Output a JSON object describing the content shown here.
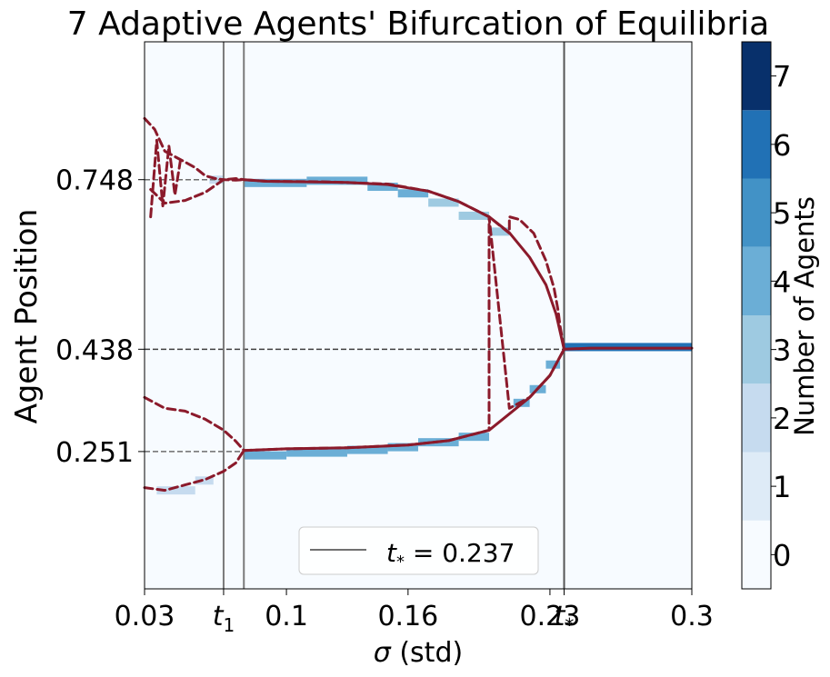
{
  "chart_data": {
    "type": "line",
    "title": "7 Adaptive Agents' Bifurcation of Equilibria",
    "xlabel_symbol": "σ",
    "xlabel_rest": " (std)",
    "ylabel": "Agent Position",
    "xlim": [
      0.03,
      0.3
    ],
    "ylim": [
      0.0,
      1.0
    ],
    "x_ticks": [
      {
        "value": 0.03,
        "label": "0.03"
      },
      {
        "value": 0.069,
        "label": "t",
        "sub": "1"
      },
      {
        "value": 0.1,
        "label": "0.1"
      },
      {
        "value": 0.16,
        "label": "0.16"
      },
      {
        "value": 0.23,
        "label": "0.23"
      },
      {
        "value": 0.237,
        "label": "t",
        "sub": "*"
      },
      {
        "value": 0.3,
        "label": "0.3"
      }
    ],
    "y_ticks": [
      {
        "value": 0.251,
        "label": "0.251"
      },
      {
        "value": 0.438,
        "label": "0.438"
      },
      {
        "value": 0.748,
        "label": "0.748"
      }
    ],
    "reference_hlines": [
      {
        "y": 0.748,
        "x_end": 0.069,
        "style": "dashed",
        "color": "#6e6e6e"
      },
      {
        "y": 0.438,
        "x_end": 0.237,
        "style": "dashed",
        "color": "#404040"
      },
      {
        "y": 0.251,
        "x_end": 0.079,
        "style": "dashed",
        "color": "#6e6e6e"
      }
    ],
    "reference_vlines": [
      {
        "x": 0.069,
        "color": "#7a7a7a"
      },
      {
        "x": 0.079,
        "color": "#7a7a7a"
      },
      {
        "x": 0.237,
        "color": "#555555"
      }
    ],
    "legend": {
      "label": "t",
      "sub": "*",
      "rest": " = 0.237",
      "placement": "lower-center"
    },
    "colorbar": {
      "label": "Number of Agents",
      "ticks": [
        "0",
        "1",
        "2",
        "3",
        "4",
        "5",
        "6",
        "7"
      ],
      "colors": [
        "#f7fbff",
        "#deebf7",
        "#c6dbef",
        "#9ecae1",
        "#6baed6",
        "#4292c6",
        "#2171b5",
        "#08306b"
      ]
    },
    "series": [
      {
        "style": "solid",
        "color": "#8b1a2b",
        "x": [
          0.079,
          0.09,
          0.11,
          0.13,
          0.15,
          0.17,
          0.185,
          0.2,
          0.21,
          0.22,
          0.228,
          0.233,
          0.237,
          0.25,
          0.27,
          0.3
        ],
        "y": [
          0.748,
          0.745,
          0.744,
          0.743,
          0.739,
          0.727,
          0.708,
          0.68,
          0.651,
          0.606,
          0.556,
          0.503,
          0.438,
          0.44,
          0.44,
          0.44
        ]
      },
      {
        "style": "solid",
        "color": "#8b1a2b",
        "x": [
          0.079,
          0.1,
          0.13,
          0.16,
          0.18,
          0.2,
          0.21,
          0.22,
          0.23,
          0.237
        ],
        "y": [
          0.253,
          0.256,
          0.258,
          0.263,
          0.271,
          0.29,
          0.32,
          0.35,
          0.39,
          0.438
        ]
      },
      {
        "style": "dashed",
        "color": "#8b1a2b",
        "x": [
          0.03,
          0.035,
          0.04,
          0.045,
          0.05,
          0.055,
          0.06,
          0.065,
          0.069,
          0.075,
          0.079,
          0.09,
          0.12,
          0.15,
          0.17,
          0.185,
          0.2,
          0.21,
          0.21,
          0.215,
          0.222,
          0.228,
          0.232,
          0.234,
          0.235,
          0.237
        ],
        "y": [
          0.86,
          0.84,
          0.8,
          0.79,
          0.78,
          0.77,
          0.755,
          0.75,
          0.748,
          0.747,
          0.748,
          0.745,
          0.744,
          0.74,
          0.727,
          0.708,
          0.68,
          0.65,
          0.68,
          0.675,
          0.65,
          0.6,
          0.55,
          0.51,
          0.48,
          0.438
        ]
      },
      {
        "style": "dashed",
        "color": "#8b1a2b",
        "x": [
          0.033,
          0.04,
          0.05,
          0.06,
          0.069,
          0.075,
          0.079
        ],
        "y": [
          0.73,
          0.705,
          0.71,
          0.725,
          0.748,
          0.75,
          0.748
        ]
      },
      {
        "style": "dashed",
        "color": "#8b1a2b",
        "x": [
          0.033,
          0.036,
          0.039,
          0.042,
          0.045,
          0.048
        ],
        "y": [
          0.68,
          0.82,
          0.7,
          0.81,
          0.72,
          0.79
        ]
      },
      {
        "style": "dashed",
        "color": "#8b1a2b",
        "x": [
          0.03,
          0.04,
          0.05,
          0.06,
          0.069,
          0.075,
          0.079,
          0.1,
          0.13,
          0.16,
          0.18,
          0.2,
          0.2,
          0.21,
          0.22,
          0.23,
          0.237
        ],
        "y": [
          0.35,
          0.33,
          0.325,
          0.31,
          0.29,
          0.27,
          0.253,
          0.256,
          0.258,
          0.263,
          0.271,
          0.29,
          0.68,
          0.33,
          0.35,
          0.39,
          0.438
        ]
      },
      {
        "style": "dashed",
        "color": "#8b1a2b",
        "x": [
          0.03,
          0.04,
          0.05,
          0.06,
          0.069,
          0.075,
          0.079
        ],
        "y": [
          0.185,
          0.18,
          0.19,
          0.2,
          0.215,
          0.23,
          0.253
        ]
      }
    ],
    "heat_cells": [
      {
        "x0": 0.036,
        "x1": 0.055,
        "y": 0.18,
        "level": 2
      },
      {
        "x0": 0.055,
        "x1": 0.064,
        "y": 0.198,
        "level": 2
      },
      {
        "x0": 0.062,
        "x1": 0.069,
        "y": 0.748,
        "level": 2
      },
      {
        "x0": 0.079,
        "x1": 0.1,
        "y": 0.244,
        "level": 4
      },
      {
        "x0": 0.1,
        "x1": 0.13,
        "y": 0.249,
        "level": 4
      },
      {
        "x0": 0.13,
        "x1": 0.15,
        "y": 0.254,
        "level": 4
      },
      {
        "x0": 0.15,
        "x1": 0.165,
        "y": 0.259,
        "level": 4
      },
      {
        "x0": 0.165,
        "x1": 0.185,
        "y": 0.268,
        "level": 4
      },
      {
        "x0": 0.185,
        "x1": 0.2,
        "y": 0.278,
        "level": 4
      },
      {
        "x0": 0.079,
        "x1": 0.11,
        "y": 0.742,
        "level": 4
      },
      {
        "x0": 0.11,
        "x1": 0.14,
        "y": 0.746,
        "level": 4
      },
      {
        "x0": 0.14,
        "x1": 0.155,
        "y": 0.735,
        "level": 4
      },
      {
        "x0": 0.155,
        "x1": 0.17,
        "y": 0.723,
        "level": 4
      },
      {
        "x0": 0.17,
        "x1": 0.185,
        "y": 0.706,
        "level": 3
      },
      {
        "x0": 0.185,
        "x1": 0.2,
        "y": 0.682,
        "level": 3
      },
      {
        "x0": 0.2,
        "x1": 0.21,
        "y": 0.653,
        "level": 3
      },
      {
        "x0": 0.212,
        "x1": 0.22,
        "y": 0.34,
        "level": 4
      },
      {
        "x0": 0.22,
        "x1": 0.228,
        "y": 0.365,
        "level": 4
      },
      {
        "x0": 0.228,
        "x1": 0.235,
        "y": 0.41,
        "level": 4
      },
      {
        "x0": 0.237,
        "x1": 0.3,
        "y": 0.442,
        "level": 6
      }
    ]
  }
}
